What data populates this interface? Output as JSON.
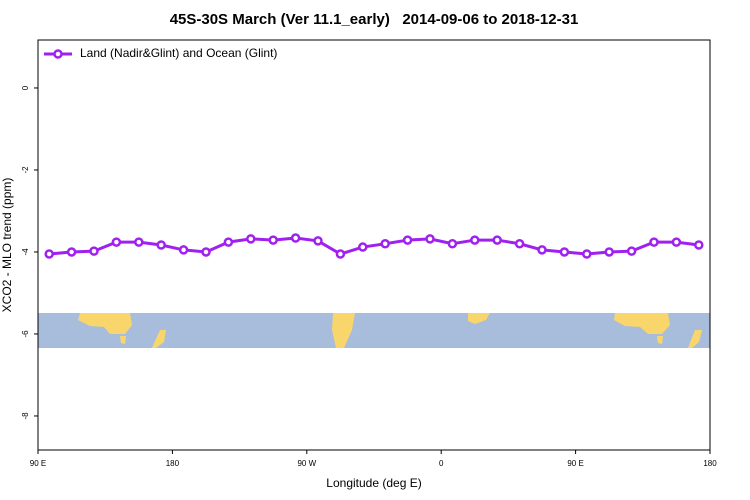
{
  "chart_data": {
    "type": "line",
    "title": "45S-30S March (Ver 11.1_early)   2014-09-06 to 2018-12-31",
    "xlabel": "Longitude (deg E)",
    "ylabel": "XCO2 - MLO trend (ppm)",
    "xlim": [
      90,
      540
    ],
    "xticks": [
      {
        "value": 90,
        "label": "90 E"
      },
      {
        "value": 180,
        "label": "180"
      },
      {
        "value": 270,
        "label": "90 W"
      },
      {
        "value": 360,
        "label": "0"
      },
      {
        "value": 450,
        "label": "90 E"
      },
      {
        "value": 540,
        "label": "180"
      }
    ],
    "ylim": [
      -8.83,
      1.17
    ],
    "yticks": [
      0,
      -2,
      -4,
      -6,
      -8
    ],
    "legend": "top-left",
    "x": [
      97.5,
      112.5,
      127.5,
      142.5,
      157.5,
      172.5,
      187.5,
      202.5,
      217.5,
      232.5,
      247.5,
      262.5,
      277.5,
      292.5,
      307.5,
      322.5,
      337.5,
      352.5,
      367.5,
      382.5,
      397.5,
      412.5,
      427.5,
      442.5,
      457.5,
      472.5,
      487.5,
      502.5,
      517.5,
      532.5
    ],
    "series": [
      {
        "name": "Land (Nadir&Glint) and Ocean (Glint)",
        "color": "#a020f0",
        "values": [
          -4.05,
          -4.0,
          -3.98,
          -3.76,
          -3.76,
          -3.83,
          -3.95,
          -4.0,
          -3.76,
          -3.68,
          -3.71,
          -3.66,
          -3.73,
          -4.05,
          -3.88,
          -3.8,
          -3.71,
          -3.68,
          -3.8,
          -3.71,
          -3.71,
          -3.8,
          -3.95,
          -4.0,
          -4.05,
          -4.0,
          -3.98,
          -3.76,
          -3.76,
          -3.83
        ]
      }
    ]
  }
}
